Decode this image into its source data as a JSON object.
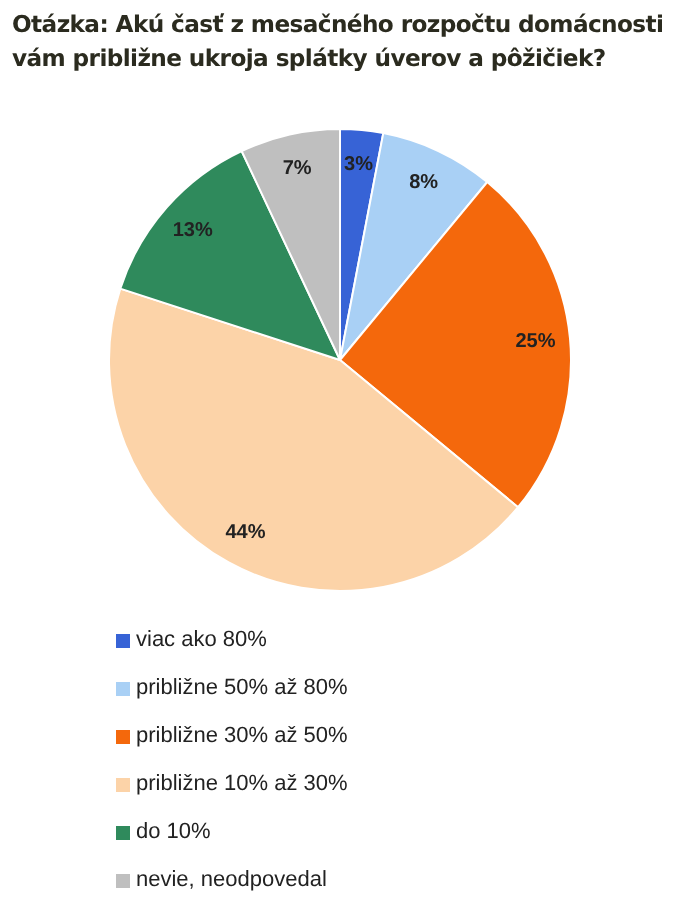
{
  "chart_data": {
    "type": "pie",
    "title": "Otázka: Akú časť z mesačného rozpočtu domácnosti vám približne ukroja splátky úverov a pôžičiek?",
    "categories": [
      "viac ako 80%",
      "približne 50% až 80%",
      "približne 30% až 50%",
      "približne 10% až 30%",
      "do 10%",
      "nevie, neodpovedal"
    ],
    "values": [
      3,
      8,
      25,
      44,
      13,
      7
    ],
    "colors": [
      "#3763d6",
      "#a9d0f5",
      "#f4680c",
      "#fcd3a8",
      "#2f8a5c",
      "#bfbfbf"
    ],
    "value_labels": [
      "3%",
      "8%",
      "25%",
      "44%",
      "13%",
      "7%"
    ],
    "legend": "bottom"
  }
}
